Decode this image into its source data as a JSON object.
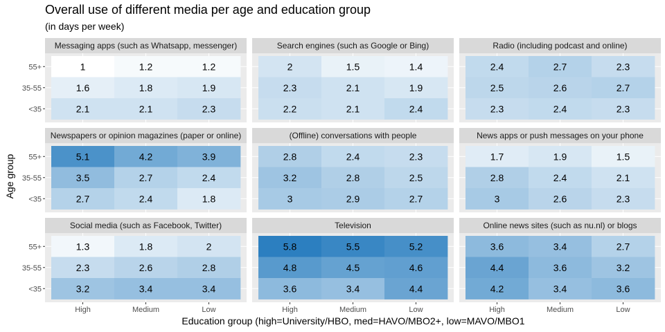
{
  "chart_data": {
    "type": "heatmap",
    "title": "Overall use of different media per age and education group",
    "subtitle": "(in days per week)",
    "xlabel": "Education group (high=University/HBO, med=HAVO/MBO2+, low=MAVO/MBO1",
    "ylabel": "Age group",
    "x_categories": [
      "High",
      "Medium",
      "Low"
    ],
    "y_categories": [
      "55+",
      "35-55",
      "<35"
    ],
    "fill_range": [
      1,
      5.8
    ],
    "fill_low_color": "#ffffff",
    "fill_high_color": "#2c7fc0",
    "panel_background": "#ebebeb",
    "strip_background": "#d9d9d9",
    "panels": [
      {
        "name": "Messaging apps (such as Whatsapp, messenger)",
        "values": [
          [
            1,
            1.2,
            1.2
          ],
          [
            1.6,
            1.8,
            1.9
          ],
          [
            2.1,
            2.1,
            2.3
          ]
        ]
      },
      {
        "name": "Search engines (such as Google or Bing)",
        "values": [
          [
            2,
            1.5,
            1.4
          ],
          [
            2.3,
            2.1,
            1.9
          ],
          [
            2.2,
            2.1,
            2.4
          ]
        ]
      },
      {
        "name": "Radio (including podcast and online)",
        "values": [
          [
            2.4,
            2.7,
            2.3
          ],
          [
            2.5,
            2.6,
            2.7
          ],
          [
            2.3,
            2.4,
            2.3
          ]
        ]
      },
      {
        "name": "Newspapers or opinion magazines (paper or online)",
        "values": [
          [
            5.1,
            4.2,
            3.9
          ],
          [
            3.5,
            2.7,
            2.4
          ],
          [
            2.7,
            2.4,
            1.8
          ]
        ]
      },
      {
        "name": "(Offline) conversations with people",
        "values": [
          [
            2.8,
            2.4,
            2.3
          ],
          [
            3.2,
            2.8,
            2.5
          ],
          [
            3,
            2.9,
            2.7
          ]
        ]
      },
      {
        "name": "News apps or push messages on your phone",
        "values": [
          [
            1.7,
            1.9,
            1.5
          ],
          [
            2.8,
            2.4,
            2.1
          ],
          [
            3,
            2.6,
            2.3
          ]
        ]
      },
      {
        "name": "Social media (such as Facebook, Twitter)",
        "values": [
          [
            1.3,
            1.8,
            2
          ],
          [
            2.3,
            2.6,
            2.8
          ],
          [
            3.2,
            3.4,
            3.4
          ]
        ]
      },
      {
        "name": "Television",
        "values": [
          [
            5.8,
            5.5,
            5.2
          ],
          [
            4.8,
            4.5,
            4.6
          ],
          [
            3.6,
            3.4,
            4.4
          ]
        ]
      },
      {
        "name": "Online news sites (such as nu.nl) or blogs",
        "values": [
          [
            3.6,
            3.4,
            2.7
          ],
          [
            4.4,
            3.6,
            3.2
          ],
          [
            4.2,
            3.4,
            3.6
          ]
        ]
      }
    ]
  }
}
